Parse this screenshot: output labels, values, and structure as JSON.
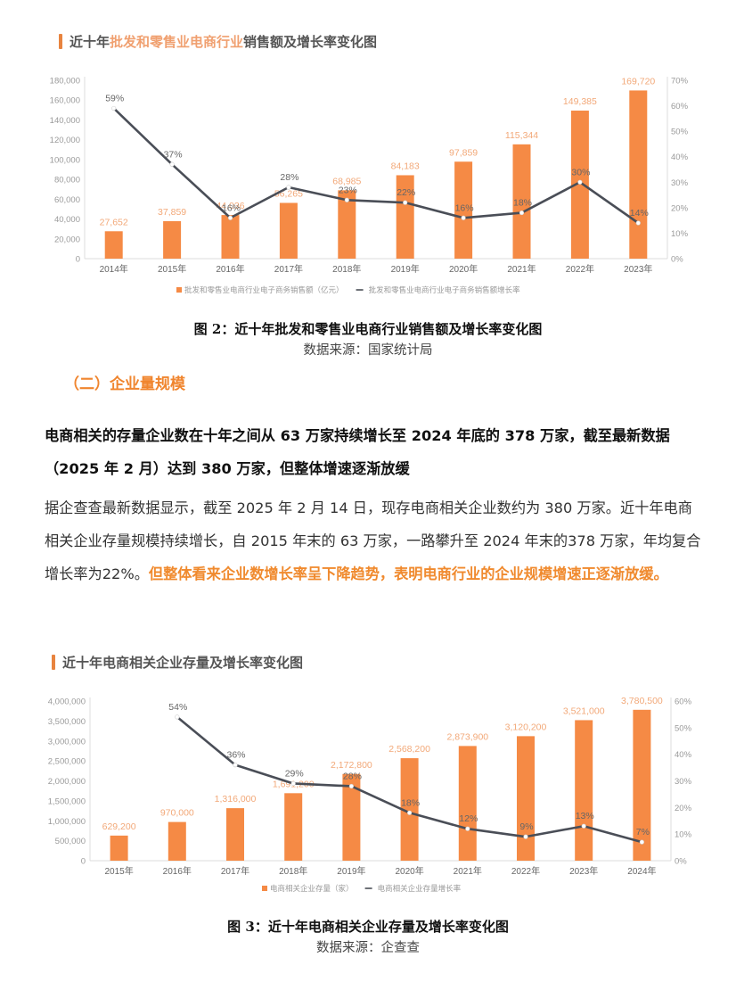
{
  "chart1": {
    "title_prefix": "近十年",
    "title_highlight": "批发和零售业电商行业",
    "title_suffix": "销售额及增长率变化图",
    "caption": "图 2：近十年批发和零售业电商行业销售额及增长率变化图",
    "source": "数据来源：国家统计局"
  },
  "section": {
    "heading": "（二）企业量规模"
  },
  "summary": {
    "bold_text": "电商相关的存量企业数在十年之间从 63 万家持续增长至 2024 年底的 378 万家，截至最新数据（2025 年 2 月）达到 380 万家，但整体增速逐渐放缓",
    "body_text": "据企查查最新数据显示，截至 2025 年 2 月 14 日，现存电商相关企业数约为 380 万家。近十年电商相关企业存量规模持续增长，自 2015 年末的 63 万家，一路攀升至 2024 年末的378 万家，年均复合增长率为22%。",
    "body_highlight": "但整体看来企业数增长率呈下降趋势，表明电商行业的企业规模增速正逐渐放缓。"
  },
  "chart2": {
    "title": "近十年电商相关企业存量及增长率变化图",
    "caption": "图 3：近十年电商相关企业存量及增长率变化图",
    "source": "数据来源：企查查"
  },
  "colors": {
    "bar": "#F58A45",
    "bar_label": "#F2A878",
    "line": "#4A4E57",
    "axis_text": "#9A9A9A",
    "accent": "#F08A2E"
  },
  "chart_data": [
    {
      "type": "bar",
      "title": "近十年批发和零售业电商行业销售额及增长率变化图",
      "categories": [
        "2014年",
        "2015年",
        "2016年",
        "2017年",
        "2018年",
        "2019年",
        "2020年",
        "2021年",
        "2022年",
        "2023年"
      ],
      "series": [
        {
          "name": "批发和零售业电商行业电子商务销售额（亿元）",
          "type": "bar",
          "axis": "left",
          "values": [
            27652,
            37859,
            44036,
            56265,
            68985,
            84183,
            97859,
            115344,
            149385,
            169720
          ],
          "labels": [
            "27,652",
            "37,859",
            "44,036",
            "56,265",
            "68,985",
            "84,183",
            "97,859",
            "115,344",
            "149,385",
            "169,720"
          ]
        },
        {
          "name": "批发和零售业电商行业电子商务销售额增长率",
          "type": "line",
          "axis": "right",
          "values": [
            59,
            37,
            16,
            28,
            23,
            22,
            16,
            18,
            30,
            14
          ],
          "labels": [
            "59%",
            "37%",
            "16%",
            "28%",
            "23%",
            "22%",
            "16%",
            "18%",
            "30%",
            "14%"
          ]
        }
      ],
      "ylim": [
        0,
        180000
      ],
      "yticks": [
        "0",
        "20,000",
        "40,000",
        "60,000",
        "80,000",
        "100,000",
        "120,000",
        "140,000",
        "160,000",
        "180,000"
      ],
      "y2lim": [
        0,
        70
      ],
      "y2ticks": [
        "0%",
        "10%",
        "20%",
        "30%",
        "40%",
        "50%",
        "60%",
        "70%"
      ],
      "legend_position": "bottom",
      "grid": false
    },
    {
      "type": "bar",
      "title": "近十年电商相关企业存量及增长率变化图",
      "categories": [
        "2015年",
        "2016年",
        "2017年",
        "2018年",
        "2019年",
        "2020年",
        "2021年",
        "2022年",
        "2023年",
        "2024年"
      ],
      "series": [
        {
          "name": "电商相关企业存量（家）",
          "type": "bar",
          "axis": "left",
          "values": [
            629200,
            970000,
            1316000,
            1691200,
            2172800,
            2568200,
            2873900,
            3120200,
            3521000,
            3780500
          ],
          "labels": [
            "629,200",
            "970,000",
            "1,316,000",
            "1,691,200",
            "2,172,800",
            "2,568,200",
            "2,873,900",
            "3,120,200",
            "3,521,000",
            "3,780,500"
          ]
        },
        {
          "name": "电商相关企业存量增长率",
          "type": "line",
          "axis": "right",
          "values": [
            null,
            54,
            36,
            29,
            28,
            18,
            12,
            9,
            13,
            7
          ],
          "labels": [
            "",
            "54%",
            "36%",
            "29%",
            "28%",
            "18%",
            "12%",
            "9%",
            "13%",
            "7%"
          ]
        }
      ],
      "ylim": [
        0,
        4000000
      ],
      "yticks": [
        "0",
        "500,000",
        "1,000,000",
        "1,500,000",
        "2,000,000",
        "2,500,000",
        "3,000,000",
        "3,500,000",
        "4,000,000"
      ],
      "y2lim": [
        0,
        60
      ],
      "y2ticks": [
        "0%",
        "10%",
        "20%",
        "30%",
        "40%",
        "50%",
        "60%"
      ],
      "legend_position": "bottom",
      "grid": false
    }
  ]
}
